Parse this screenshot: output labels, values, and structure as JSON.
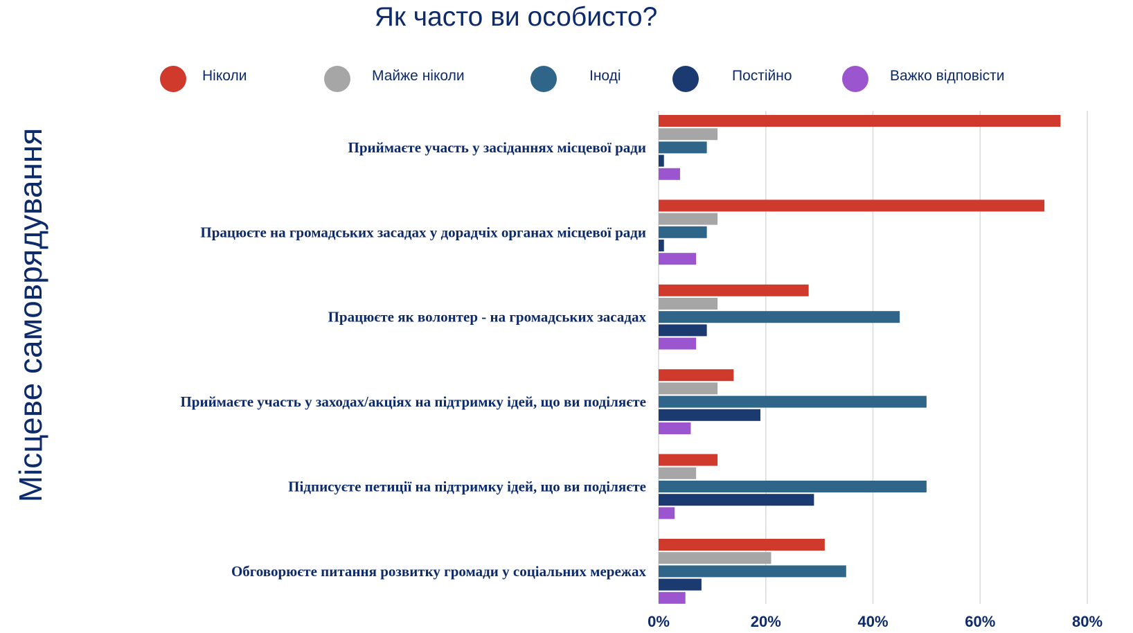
{
  "chart_data": {
    "type": "bar",
    "orientation": "horizontal",
    "title": "Як часто ви особисто?",
    "ylabel": "Місцеве самоврядування",
    "xlabel": "",
    "xlim": [
      0,
      80
    ],
    "x_ticks": [
      "0%",
      "20%",
      "40%",
      "60%",
      "80%"
    ],
    "grid": true,
    "legend_position": "top",
    "categories": [
      "Приймаєте участь у засіданнях місцевої ради",
      "Працюєте на громадських засадах у дорадчіх органах місцевої ради",
      "Працюєте як волонтер - на громадських засадах",
      "Приймаєте участь у заходах/акціях на підтримку ідей, що ви поділяєте",
      "Підписуєте петиції на підтримку ідей, що ви поділяєте",
      "Обговорюєте питання розвитку громади у соціальних мережах"
    ],
    "series": [
      {
        "name": "Ніколи",
        "color": "#cf3a2c",
        "values": [
          75,
          72,
          28,
          14,
          11,
          31
        ]
      },
      {
        "name": "Майже ніколи",
        "color": "#a6a6a6",
        "values": [
          11,
          11,
          11,
          11,
          7,
          21
        ]
      },
      {
        "name": "Іноді",
        "color": "#2e6589",
        "values": [
          9,
          9,
          45,
          50,
          50,
          35
        ]
      },
      {
        "name": "Постійно",
        "color": "#1b3a70",
        "values": [
          1,
          1,
          9,
          19,
          29,
          8
        ]
      },
      {
        "name": "Важко відповісти",
        "color": "#9a55cf",
        "values": [
          4,
          7,
          7,
          6,
          3,
          5
        ]
      }
    ]
  }
}
